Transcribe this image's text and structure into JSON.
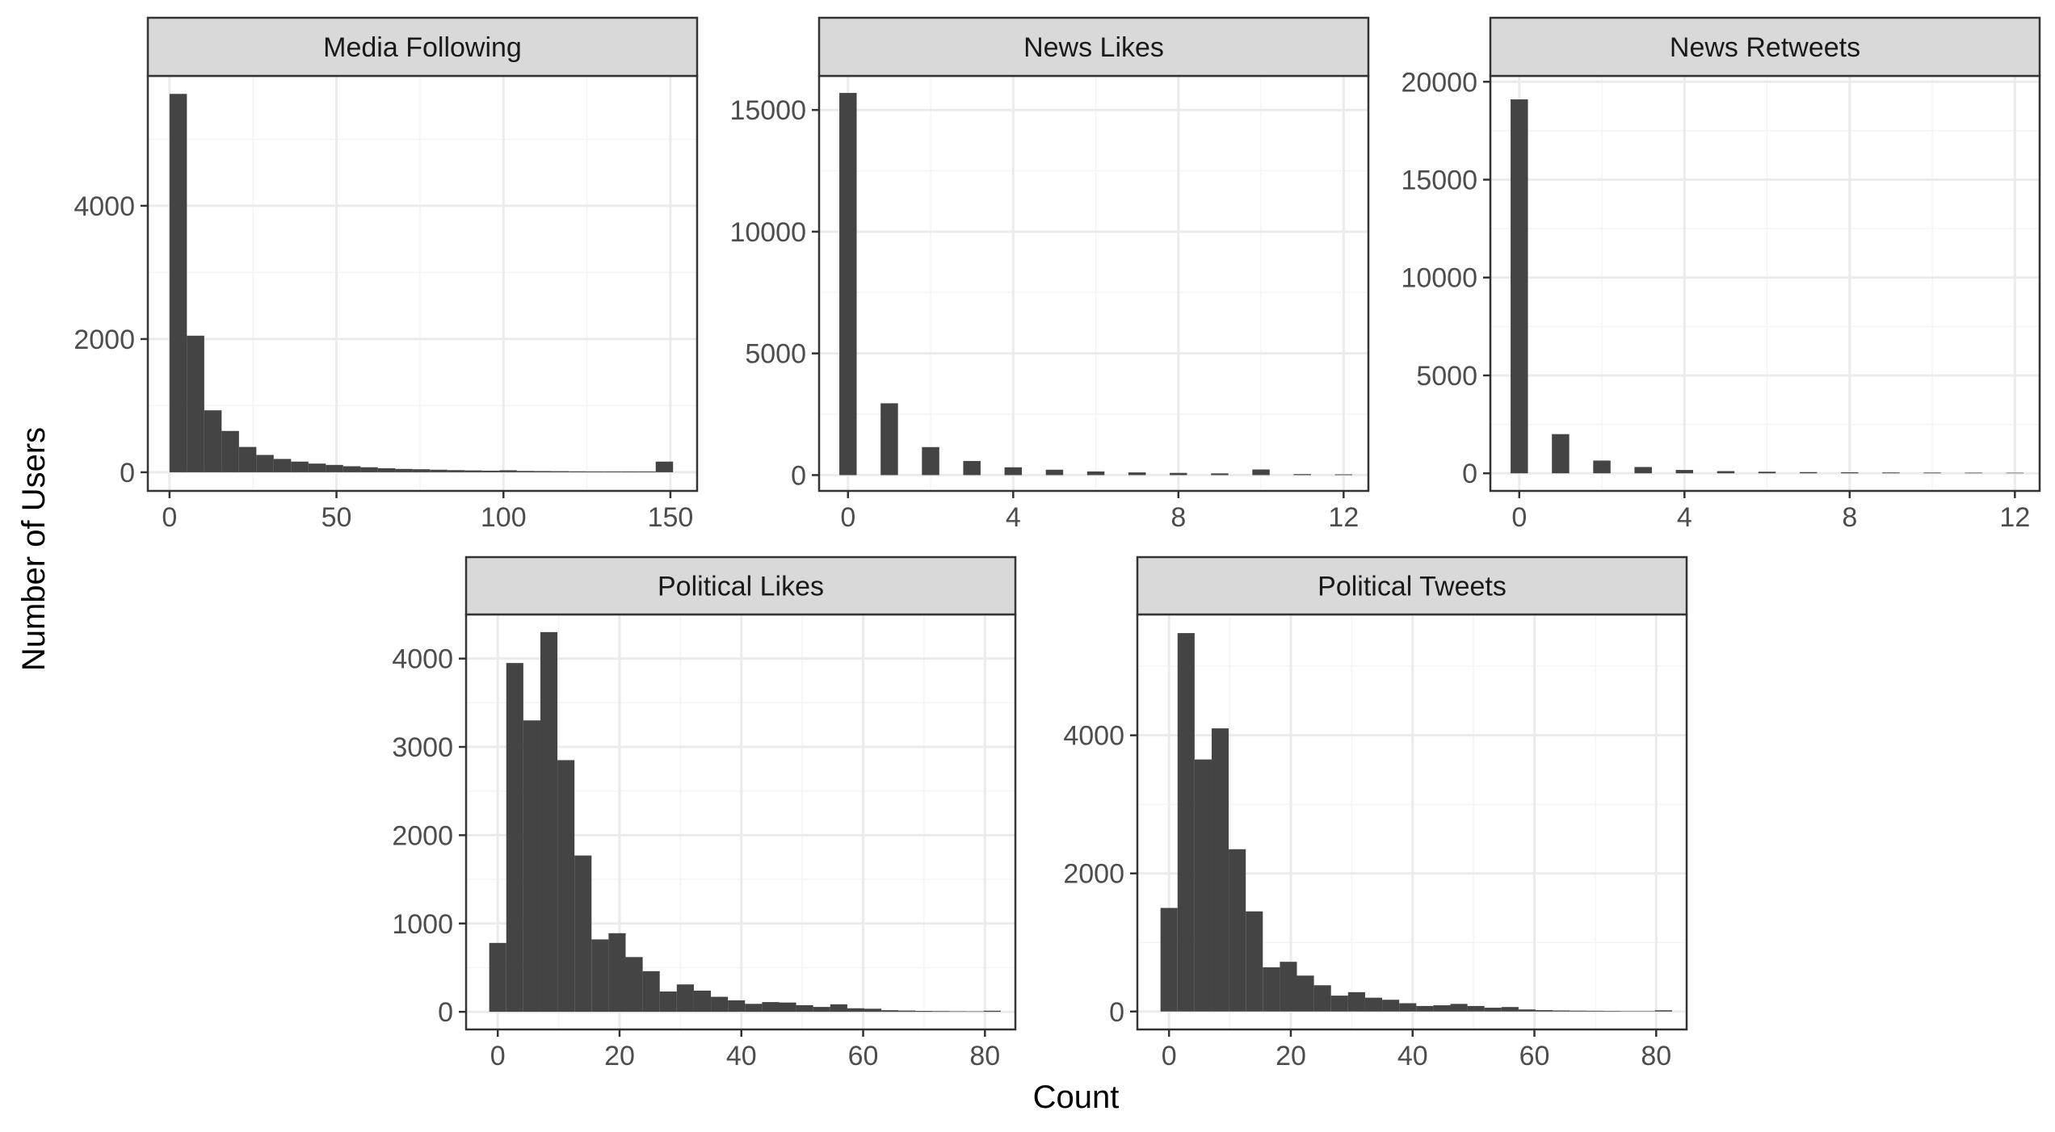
{
  "figure": {
    "ylabel": "Number of Users",
    "xlabel": "Count"
  },
  "colors": {
    "bar": "#444444",
    "panel_border": "#333333",
    "strip_fill": "#d9d9d9",
    "grid_major": "#ebebeb",
    "grid_minor": "#f4f4f4",
    "tick_label": "#4d4d4d"
  },
  "chart_data": [
    {
      "type": "bar",
      "title": "Media Following",
      "xlim": [
        -6.5,
        158
      ],
      "ylim": [
        -280,
        5950
      ],
      "xticks": [
        0,
        50,
        100,
        150
      ],
      "yticks": [
        0,
        2000,
        4000
      ],
      "grid": true,
      "bins": [
        {
          "x": 0,
          "w": 5.2,
          "y": 5680
        },
        {
          "x": 5.2,
          "w": 5.2,
          "y": 2050
        },
        {
          "x": 10.4,
          "w": 5.2,
          "y": 930
        },
        {
          "x": 15.6,
          "w": 5.2,
          "y": 620
        },
        {
          "x": 20.8,
          "w": 5.2,
          "y": 380
        },
        {
          "x": 26,
          "w": 5.2,
          "y": 260
        },
        {
          "x": 31.2,
          "w": 5.2,
          "y": 200
        },
        {
          "x": 36.4,
          "w": 5.2,
          "y": 160
        },
        {
          "x": 41.6,
          "w": 5.2,
          "y": 130
        },
        {
          "x": 46.8,
          "w": 5.2,
          "y": 110
        },
        {
          "x": 52,
          "w": 5.2,
          "y": 90
        },
        {
          "x": 57.2,
          "w": 5.2,
          "y": 75
        },
        {
          "x": 62.4,
          "w": 5.2,
          "y": 60
        },
        {
          "x": 67.6,
          "w": 5.2,
          "y": 50
        },
        {
          "x": 72.8,
          "w": 5.2,
          "y": 45
        },
        {
          "x": 78,
          "w": 5.2,
          "y": 38
        },
        {
          "x": 83.2,
          "w": 5.2,
          "y": 32
        },
        {
          "x": 88.4,
          "w": 5.2,
          "y": 28
        },
        {
          "x": 93.6,
          "w": 5.2,
          "y": 24
        },
        {
          "x": 98.8,
          "w": 5.2,
          "y": 30
        },
        {
          "x": 104,
          "w": 5.2,
          "y": 20
        },
        {
          "x": 109.2,
          "w": 5.2,
          "y": 18
        },
        {
          "x": 114.4,
          "w": 5.2,
          "y": 16
        },
        {
          "x": 119.6,
          "w": 5.2,
          "y": 14
        },
        {
          "x": 124.8,
          "w": 5.2,
          "y": 12
        },
        {
          "x": 130,
          "w": 5.2,
          "y": 12
        },
        {
          "x": 135.2,
          "w": 5.2,
          "y": 12
        },
        {
          "x": 140.4,
          "w": 5.2,
          "y": 12
        },
        {
          "x": 145.6,
          "w": 5.2,
          "y": 160
        }
      ]
    },
    {
      "type": "bar",
      "title": "News Likes",
      "xlim": [
        -0.7,
        12.6
      ],
      "ylim": [
        -650,
        16400
      ],
      "xticks": [
        0,
        4,
        8,
        12
      ],
      "yticks": [
        0,
        5000,
        10000,
        15000
      ],
      "grid": true,
      "bins": [
        {
          "x": -0.21,
          "w": 0.42,
          "y": 15700
        },
        {
          "x": 0.79,
          "w": 0.42,
          "y": 2950
        },
        {
          "x": 1.79,
          "w": 0.42,
          "y": 1150
        },
        {
          "x": 2.79,
          "w": 0.42,
          "y": 580
        },
        {
          "x": 3.79,
          "w": 0.42,
          "y": 320
        },
        {
          "x": 4.79,
          "w": 0.42,
          "y": 220
        },
        {
          "x": 5.79,
          "w": 0.42,
          "y": 150
        },
        {
          "x": 6.79,
          "w": 0.42,
          "y": 110
        },
        {
          "x": 7.79,
          "w": 0.42,
          "y": 90
        },
        {
          "x": 8.79,
          "w": 0.42,
          "y": 70
        },
        {
          "x": 9.79,
          "w": 0.42,
          "y": 230
        },
        {
          "x": 10.79,
          "w": 0.42,
          "y": 40
        },
        {
          "x": 11.79,
          "w": 0.42,
          "y": 30
        }
      ]
    },
    {
      "type": "bar",
      "title": "News Retweets",
      "xlim": [
        -0.7,
        12.6
      ],
      "ylim": [
        -900,
        20300
      ],
      "xticks": [
        0,
        4,
        8,
        12
      ],
      "yticks": [
        0,
        5000,
        10000,
        15000,
        20000
      ],
      "grid": true,
      "bins": [
        {
          "x": -0.21,
          "w": 0.42,
          "y": 19100
        },
        {
          "x": 0.79,
          "w": 0.42,
          "y": 2000
        },
        {
          "x": 1.79,
          "w": 0.42,
          "y": 650
        },
        {
          "x": 2.79,
          "w": 0.42,
          "y": 320
        },
        {
          "x": 3.79,
          "w": 0.42,
          "y": 170
        },
        {
          "x": 4.79,
          "w": 0.42,
          "y": 110
        },
        {
          "x": 5.79,
          "w": 0.42,
          "y": 80
        },
        {
          "x": 6.79,
          "w": 0.42,
          "y": 60
        },
        {
          "x": 7.79,
          "w": 0.42,
          "y": 50
        },
        {
          "x": 8.79,
          "w": 0.42,
          "y": 40
        },
        {
          "x": 9.79,
          "w": 0.42,
          "y": 35
        },
        {
          "x": 10.79,
          "w": 0.42,
          "y": 30
        },
        {
          "x": 11.79,
          "w": 0.42,
          "y": 25
        }
      ]
    },
    {
      "type": "bar",
      "title": "Political Likes",
      "xlim": [
        -5.2,
        85
      ],
      "ylim": [
        -200,
        4500
      ],
      "xticks": [
        0,
        20,
        40,
        60,
        80
      ],
      "yticks": [
        0,
        1000,
        2000,
        3000,
        4000
      ],
      "grid": true,
      "bins": [
        {
          "x": -1.4,
          "w": 2.8,
          "y": 780
        },
        {
          "x": 1.4,
          "w": 2.8,
          "y": 3950
        },
        {
          "x": 4.2,
          "w": 2.8,
          "y": 3300
        },
        {
          "x": 7,
          "w": 2.8,
          "y": 4300
        },
        {
          "x": 9.8,
          "w": 2.8,
          "y": 2850
        },
        {
          "x": 12.6,
          "w": 2.8,
          "y": 1770
        },
        {
          "x": 15.4,
          "w": 2.8,
          "y": 820
        },
        {
          "x": 18.2,
          "w": 2.8,
          "y": 890
        },
        {
          "x": 21,
          "w": 2.8,
          "y": 620
        },
        {
          "x": 23.8,
          "w": 2.8,
          "y": 460
        },
        {
          "x": 26.6,
          "w": 2.8,
          "y": 230
        },
        {
          "x": 29.4,
          "w": 2.8,
          "y": 310
        },
        {
          "x": 32.2,
          "w": 2.8,
          "y": 240
        },
        {
          "x": 35,
          "w": 2.8,
          "y": 170
        },
        {
          "x": 37.8,
          "w": 2.8,
          "y": 130
        },
        {
          "x": 40.6,
          "w": 2.8,
          "y": 90
        },
        {
          "x": 43.4,
          "w": 2.8,
          "y": 110
        },
        {
          "x": 46.2,
          "w": 2.8,
          "y": 105
        },
        {
          "x": 49,
          "w": 2.8,
          "y": 75
        },
        {
          "x": 51.8,
          "w": 2.8,
          "y": 55
        },
        {
          "x": 54.6,
          "w": 2.8,
          "y": 85
        },
        {
          "x": 57.4,
          "w": 2.8,
          "y": 40
        },
        {
          "x": 60.2,
          "w": 2.8,
          "y": 35
        },
        {
          "x": 63,
          "w": 2.8,
          "y": 18
        },
        {
          "x": 65.8,
          "w": 2.8,
          "y": 14
        },
        {
          "x": 68.6,
          "w": 2.8,
          "y": 10
        },
        {
          "x": 71.4,
          "w": 2.8,
          "y": 8
        },
        {
          "x": 74.2,
          "w": 2.8,
          "y": 6
        },
        {
          "x": 77,
          "w": 2.8,
          "y": 5
        },
        {
          "x": 79.8,
          "w": 2.8,
          "y": 12
        }
      ]
    },
    {
      "type": "bar",
      "title": "Political Tweets",
      "xlim": [
        -5.2,
        85
      ],
      "ylim": [
        -260,
        5750
      ],
      "xticks": [
        0,
        20,
        40,
        60,
        80
      ],
      "yticks": [
        0,
        2000,
        4000
      ],
      "grid": true,
      "bins": [
        {
          "x": -1.4,
          "w": 2.8,
          "y": 1500
        },
        {
          "x": 1.4,
          "w": 2.8,
          "y": 5480
        },
        {
          "x": 4.2,
          "w": 2.8,
          "y": 3650
        },
        {
          "x": 7,
          "w": 2.8,
          "y": 4100
        },
        {
          "x": 9.8,
          "w": 2.8,
          "y": 2350
        },
        {
          "x": 12.6,
          "w": 2.8,
          "y": 1450
        },
        {
          "x": 15.4,
          "w": 2.8,
          "y": 640
        },
        {
          "x": 18.2,
          "w": 2.8,
          "y": 720
        },
        {
          "x": 21,
          "w": 2.8,
          "y": 520
        },
        {
          "x": 23.8,
          "w": 2.8,
          "y": 380
        },
        {
          "x": 26.6,
          "w": 2.8,
          "y": 230
        },
        {
          "x": 29.4,
          "w": 2.8,
          "y": 280
        },
        {
          "x": 32.2,
          "w": 2.8,
          "y": 200
        },
        {
          "x": 35,
          "w": 2.8,
          "y": 170
        },
        {
          "x": 37.8,
          "w": 2.8,
          "y": 120
        },
        {
          "x": 40.6,
          "w": 2.8,
          "y": 80
        },
        {
          "x": 43.4,
          "w": 2.8,
          "y": 90
        },
        {
          "x": 46.2,
          "w": 2.8,
          "y": 110
        },
        {
          "x": 49,
          "w": 2.8,
          "y": 80
        },
        {
          "x": 51.8,
          "w": 2.8,
          "y": 55
        },
        {
          "x": 54.6,
          "w": 2.8,
          "y": 65
        },
        {
          "x": 57.4,
          "w": 2.8,
          "y": 30
        },
        {
          "x": 60.2,
          "w": 2.8,
          "y": 20
        },
        {
          "x": 63,
          "w": 2.8,
          "y": 15
        },
        {
          "x": 65.8,
          "w": 2.8,
          "y": 12
        },
        {
          "x": 68.6,
          "w": 2.8,
          "y": 10
        },
        {
          "x": 71.4,
          "w": 2.8,
          "y": 8
        },
        {
          "x": 74.2,
          "w": 2.8,
          "y": 6
        },
        {
          "x": 77,
          "w": 2.8,
          "y": 5
        },
        {
          "x": 79.8,
          "w": 2.8,
          "y": 18
        }
      ]
    }
  ]
}
